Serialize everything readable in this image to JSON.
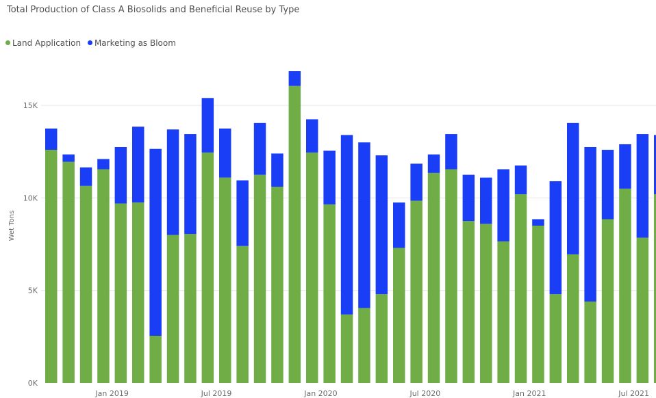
{
  "chart_data": {
    "type": "bar",
    "stacked": true,
    "title": "Total Production of Class A Biosolids and Beneficial Reuse by Type",
    "ylabel": "Wet Tons",
    "xlabel": "",
    "ylim": [
      0,
      17000
    ],
    "yticks": [
      "0K",
      "5K",
      "10K",
      "15K"
    ],
    "ytick_values": [
      0,
      5000,
      10000,
      15000
    ],
    "grid": true,
    "legend_position": "top-left",
    "x_tick_labels": [
      {
        "label": "Jan 2019",
        "index": 3
      },
      {
        "label": "Jul 2019",
        "index": 9
      },
      {
        "label": "Jan 2020",
        "index": 15
      },
      {
        "label": "Jul 2020",
        "index": 21
      },
      {
        "label": "Jan 2021",
        "index": 27
      },
      {
        "label": "Jul 2021",
        "index": 33
      }
    ],
    "categories": [
      "Oct 2018",
      "Nov 2018",
      "Dec 2018",
      "Jan 2019",
      "Feb 2019",
      "Mar 2019",
      "Apr 2019",
      "May 2019",
      "Jun 2019",
      "Jul 2019",
      "Aug 2019",
      "Sep 2019",
      "Oct 2019",
      "Nov 2019",
      "Dec 2019",
      "Jan 2020",
      "Feb 2020",
      "Mar 2020",
      "Apr 2020",
      "May 2020",
      "Jun 2020",
      "Jul 2020",
      "Aug 2020",
      "Sep 2020",
      "Oct 2020",
      "Nov 2020",
      "Dec 2020",
      "Jan 2021",
      "Feb 2021",
      "Mar 2021",
      "Apr 2021",
      "May 2021",
      "Jun 2021",
      "Jul 2021",
      "Aug 2021",
      "Sep 2021"
    ],
    "series": [
      {
        "name": "Land Application",
        "color": "#70ad47",
        "values": [
          12600,
          11950,
          10650,
          11550,
          9700,
          9750,
          2550,
          8000,
          8050,
          12450,
          11100,
          7400,
          11250,
          10600,
          16050,
          12450,
          9650,
          3700,
          4050,
          4800,
          7300,
          9850,
          11350,
          11550,
          8750,
          8600,
          7650,
          10200,
          8500,
          4800,
          6950,
          4400,
          8850,
          10500,
          7850,
          10200
        ]
      },
      {
        "name": "Marketing as Bloom",
        "color": "#1a3ef5",
        "values": [
          1150,
          400,
          1000,
          550,
          3050,
          4100,
          10100,
          5700,
          5400,
          2950,
          2650,
          3550,
          2800,
          1800,
          800,
          1800,
          2900,
          9700,
          8950,
          7500,
          2450,
          2000,
          1000,
          1900,
          2500,
          2500,
          3900,
          1550,
          350,
          6100,
          7100,
          8350,
          3750,
          2400,
          5600,
          3200
        ]
      }
    ]
  }
}
